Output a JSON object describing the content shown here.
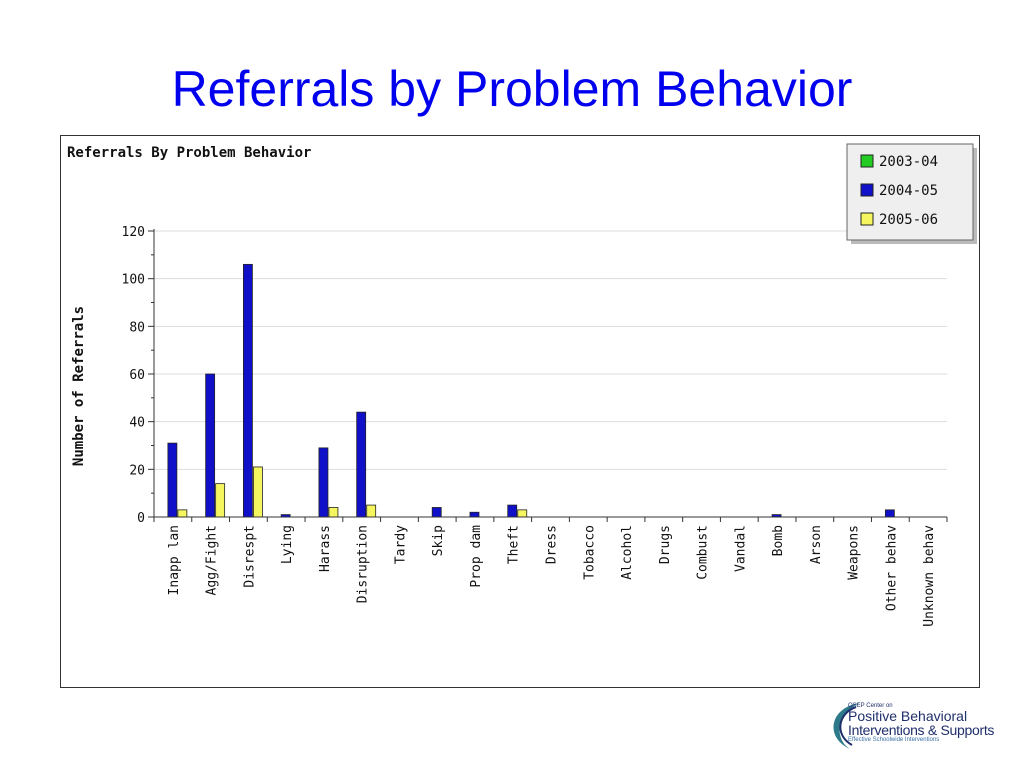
{
  "slide": {
    "title": "Referrals by Problem Behavior"
  },
  "logo": {
    "small_text": "OSEP Center on",
    "line1": "Positive Behavioral",
    "line2": "Interventions & Supports",
    "tagline": "Effective Schoolwide Interventions"
  },
  "colors": {
    "series_2003_04": "#22cc22",
    "series_2004_05": "#1010c8",
    "series_2005_06": "#f5f560",
    "title_blue": "#0000ee"
  },
  "chart_data": {
    "type": "bar",
    "title": "Referrals By Problem Behavior",
    "xlabel": "",
    "ylabel": "Number of Referrals",
    "ylim": [
      0,
      120
    ],
    "yticks": [
      0,
      20,
      40,
      60,
      80,
      100,
      120
    ],
    "grid": true,
    "legend_position": "top-right",
    "categories": [
      "Inapp lan",
      "Agg/Fight",
      "Disrespt",
      "Lying",
      "Harass",
      "Disruption",
      "Tardy",
      "Skip",
      "Prop dam",
      "Theft",
      "Dress",
      "Tobacco",
      "Alcohol",
      "Drugs",
      "Combust",
      "Vandal",
      "Bomb",
      "Arson",
      "Weapons",
      "Other behav",
      "Unknown behav"
    ],
    "series": [
      {
        "name": "2003-04",
        "values": [
          0,
          0,
          0,
          0,
          0,
          0,
          0,
          0,
          0,
          0,
          0,
          0,
          0,
          0,
          0,
          0,
          0,
          0,
          0,
          0,
          0
        ]
      },
      {
        "name": "2004-05",
        "values": [
          31,
          60,
          106,
          1,
          29,
          44,
          0,
          4,
          2,
          5,
          0,
          0,
          0,
          0,
          0,
          0,
          1,
          0,
          0,
          3,
          0
        ]
      },
      {
        "name": "2005-06",
        "values": [
          3,
          14,
          21,
          0,
          4,
          5,
          0,
          0,
          0,
          3,
          0,
          0,
          0,
          0,
          0,
          0,
          0,
          0,
          0,
          0,
          0
        ]
      }
    ]
  }
}
